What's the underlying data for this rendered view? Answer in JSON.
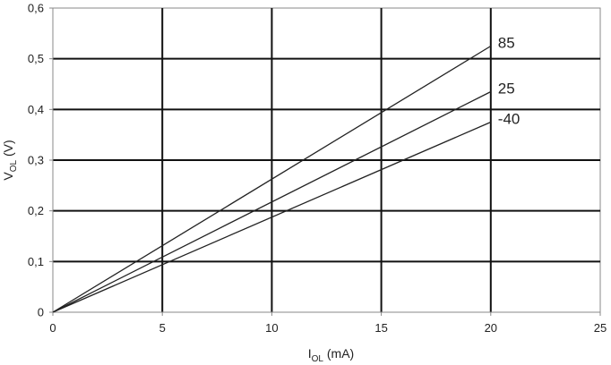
{
  "chart_data": {
    "type": "line",
    "xlabel": {
      "main": "I",
      "sub": "OL",
      "unit": " (mA)"
    },
    "ylabel": {
      "main": "V",
      "sub": "OL",
      "unit": " (V)"
    },
    "xlim": [
      0,
      25
    ],
    "ylim": [
      0,
      0.6
    ],
    "x_ticks": [
      0,
      5,
      10,
      15,
      20,
      25
    ],
    "x_tick_labels": [
      "0",
      "5",
      "10",
      "15",
      "20",
      "25"
    ],
    "y_ticks": [
      0,
      0.1,
      0.2,
      0.3,
      0.4,
      0.5,
      0.6
    ],
    "y_tick_labels": [
      "0",
      "0,1",
      "0,2",
      "0,3",
      "0,4",
      "0,5",
      "0,6"
    ],
    "grid": true,
    "series": [
      {
        "name": "85",
        "x": [
          0,
          20
        ],
        "y": [
          0,
          0.525
        ]
      },
      {
        "name": "25",
        "x": [
          0,
          20
        ],
        "y": [
          0,
          0.435
        ]
      },
      {
        "name": "-40",
        "x": [
          0,
          20
        ],
        "y": [
          0,
          0.375
        ]
      }
    ],
    "colors": {
      "grid": "#111111",
      "frame": "#888888",
      "series": "#222222"
    }
  }
}
